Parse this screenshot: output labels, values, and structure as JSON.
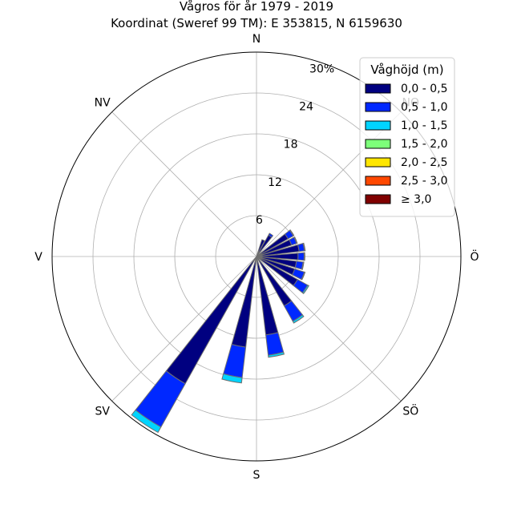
{
  "chart_data": {
    "type": "windrose",
    "title": "Vågros för år 1979 - 2019",
    "subtitle": "Koordinat (Sweref 99 TM): E 353815, N 6159630",
    "directions": [
      "N",
      "NO",
      "Ö",
      "SÖ",
      "S",
      "SV",
      "V",
      "NV"
    ],
    "radial_ticks": [
      "6",
      "12",
      "18",
      "24",
      "30%"
    ],
    "radial_max": 30,
    "grid": true,
    "legend": {
      "title": "Våghöjd (m)",
      "placement": "top-right",
      "items": [
        {
          "label": "0,0 - 0,5",
          "color": "#000080"
        },
        {
          "label": "0,5 - 1,0",
          "color": "#0028ff"
        },
        {
          "label": "1,0 - 1,5",
          "color": "#00d4ff"
        },
        {
          "label": "1,5 - 2,0",
          "color": "#7dff7a"
        },
        {
          "label": "2,0 - 2,5",
          "color": "#ffe600"
        },
        {
          "label": "2,5 - 3,0",
          "color": "#ff4800"
        },
        {
          "label": "≥ 3,0",
          "color": "#800000"
        }
      ]
    },
    "sectors": [
      {
        "bearing": 0,
        "segments": [
          0.0,
          0.0,
          0.0,
          0.0,
          0.0,
          0.0,
          0.0
        ]
      },
      {
        "bearing": 11.25,
        "segments": [
          0.0,
          0.0,
          0.0,
          0.0,
          0.0,
          0.0,
          0.0
        ]
      },
      {
        "bearing": 22.5,
        "segments": [
          2.6,
          0.0,
          0.0,
          0.0,
          0.0,
          0.0,
          0.0
        ]
      },
      {
        "bearing": 33.75,
        "segments": [
          3.6,
          0.3,
          0.0,
          0.0,
          0.0,
          0.0,
          0.0
        ]
      },
      {
        "bearing": 45,
        "segments": [
          0.0,
          0.0,
          0.0,
          0.0,
          0.0,
          0.0,
          0.0
        ]
      },
      {
        "bearing": 56.25,
        "segments": [
          5.3,
          0.9,
          0.1,
          0.0,
          0.0,
          0.0,
          0.0
        ]
      },
      {
        "bearing": 67.5,
        "segments": [
          5.4,
          0.8,
          0.1,
          0.0,
          0.0,
          0.0,
          0.0
        ]
      },
      {
        "bearing": 78.75,
        "segments": [
          6.3,
          0.8,
          0.1,
          0.0,
          0.0,
          0.0,
          0.0
        ]
      },
      {
        "bearing": 90,
        "segments": [
          6.1,
          0.9,
          0.1,
          0.0,
          0.0,
          0.0,
          0.0
        ]
      },
      {
        "bearing": 101.25,
        "segments": [
          5.9,
          1.0,
          0.1,
          0.0,
          0.0,
          0.0,
          0.0
        ]
      },
      {
        "bearing": 112.5,
        "segments": [
          5.9,
          1.5,
          0.1,
          0.0,
          0.0,
          0.0,
          0.0
        ]
      },
      {
        "bearing": 123.75,
        "segments": [
          6.9,
          1.7,
          0.2,
          0.0,
          0.0,
          0.0,
          0.0
        ]
      },
      {
        "bearing": 135,
        "segments": [
          0.0,
          0.0,
          0.0,
          0.0,
          0.0,
          0.0,
          0.0
        ]
      },
      {
        "bearing": 146.25,
        "segments": [
          8.3,
          2.6,
          0.3,
          0.0,
          0.0,
          0.0,
          0.0
        ]
      },
      {
        "bearing": 157.5,
        "segments": [
          0.0,
          0.0,
          0.0,
          0.0,
          0.0,
          0.0,
          0.0
        ]
      },
      {
        "bearing": 168.75,
        "segments": [
          11.6,
          3.0,
          0.3,
          0.0,
          0.0,
          0.0,
          0.0
        ]
      },
      {
        "bearing": 180,
        "segments": [
          0.0,
          0.0,
          0.0,
          0.0,
          0.0,
          0.0,
          0.0
        ]
      },
      {
        "bearing": 191.25,
        "segments": [
          13.4,
          4.5,
          0.8,
          0.0,
          0.0,
          0.0,
          0.0
        ]
      },
      {
        "bearing": 202.5,
        "segments": [
          0.0,
          0.0,
          0.0,
          0.0,
          0.0,
          0.0,
          0.0
        ]
      },
      {
        "bearing": 213.75,
        "segments": [
          21.4,
          7.3,
          0.9,
          0.0,
          0.0,
          0.0,
          0.0
        ]
      },
      {
        "bearing": 225,
        "segments": [
          0.0,
          0.0,
          0.0,
          0.0,
          0.0,
          0.0,
          0.0
        ]
      },
      {
        "bearing": 236.25,
        "segments": [
          0.0,
          0.0,
          0.0,
          0.0,
          0.0,
          0.0,
          0.0
        ]
      },
      {
        "bearing": 247.5,
        "segments": [
          0.0,
          0.0,
          0.0,
          0.0,
          0.0,
          0.0,
          0.0
        ]
      },
      {
        "bearing": 258.75,
        "segments": [
          0.0,
          0.0,
          0.0,
          0.0,
          0.0,
          0.0,
          0.0
        ]
      },
      {
        "bearing": 270,
        "segments": [
          0.0,
          0.0,
          0.0,
          0.0,
          0.0,
          0.0,
          0.0
        ]
      },
      {
        "bearing": 281.25,
        "segments": [
          0.0,
          0.0,
          0.0,
          0.0,
          0.0,
          0.0,
          0.0
        ]
      },
      {
        "bearing": 292.5,
        "segments": [
          0.0,
          0.0,
          0.0,
          0.0,
          0.0,
          0.0,
          0.0
        ]
      },
      {
        "bearing": 303.75,
        "segments": [
          0.0,
          0.0,
          0.0,
          0.0,
          0.0,
          0.0,
          0.0
        ]
      },
      {
        "bearing": 315,
        "segments": [
          0.0,
          0.0,
          0.0,
          0.0,
          0.0,
          0.0,
          0.0
        ]
      },
      {
        "bearing": 326.25,
        "segments": [
          0.0,
          0.0,
          0.0,
          0.0,
          0.0,
          0.0,
          0.0
        ]
      },
      {
        "bearing": 337.5,
        "segments": [
          0.0,
          0.0,
          0.0,
          0.0,
          0.0,
          0.0,
          0.0
        ]
      },
      {
        "bearing": 348.75,
        "segments": [
          0.0,
          0.0,
          0.0,
          0.0,
          0.0,
          0.0,
          0.0
        ]
      }
    ]
  }
}
